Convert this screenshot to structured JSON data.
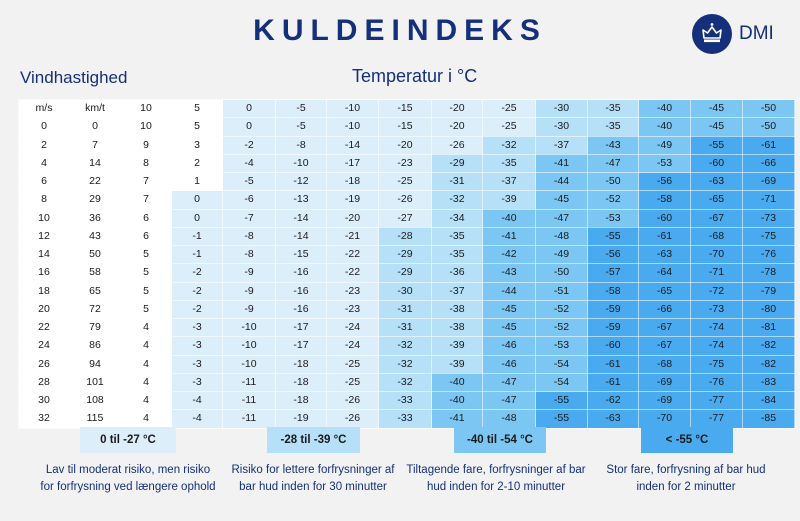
{
  "header": {
    "title": "KULDEINDEKS",
    "logo_text": "DMI",
    "row_header": "Vindhastighed",
    "col_header": "Temperatur i °C"
  },
  "colors": {
    "white": "#ffffff",
    "light": "#ddeefb",
    "mid": "#b5e0f8",
    "strong": "#7cc6f3",
    "severe": "#4aaaf0"
  },
  "chart_data": {
    "type": "table",
    "title": "KULDEINDEKS",
    "xlabel": "Temperatur i °C",
    "ylabel": "Vindhastighed",
    "header_row": [
      "m/s",
      "km/t",
      "10",
      "5",
      "0",
      "-5",
      "-10",
      "-15",
      "-20",
      "-25",
      "-30",
      "-35",
      "-40",
      "-45",
      "-50"
    ],
    "rows": [
      [
        "0",
        "0",
        "10",
        "5",
        "0",
        "-5",
        "-10",
        "-15",
        "-20",
        "-25",
        "-30",
        "-35",
        "-40",
        "-45",
        "-50"
      ],
      [
        "2",
        "7",
        "9",
        "3",
        "-2",
        "-8",
        "-14",
        "-20",
        "-26",
        "-32",
        "-37",
        "-43",
        "-49",
        "-55",
        "-61"
      ],
      [
        "4",
        "14",
        "8",
        "2",
        "-4",
        "-10",
        "-17",
        "-23",
        "-29",
        "-35",
        "-41",
        "-47",
        "-53",
        "-60",
        "-66"
      ],
      [
        "6",
        "22",
        "7",
        "1",
        "-5",
        "-12",
        "-18",
        "-25",
        "-31",
        "-37",
        "-44",
        "-50",
        "-56",
        "-63",
        "-69"
      ],
      [
        "8",
        "29",
        "7",
        "0",
        "-6",
        "-13",
        "-19",
        "-26",
        "-32",
        "-39",
        "-45",
        "-52",
        "-58",
        "-65",
        "-71"
      ],
      [
        "10",
        "36",
        "6",
        "0",
        "-7",
        "-14",
        "-20",
        "-27",
        "-34",
        "-40",
        "-47",
        "-53",
        "-60",
        "-67",
        "-73"
      ],
      [
        "12",
        "43",
        "6",
        "-1",
        "-8",
        "-14",
        "-21",
        "-28",
        "-35",
        "-41",
        "-48",
        "-55",
        "-61",
        "-68",
        "-75"
      ],
      [
        "14",
        "50",
        "5",
        "-1",
        "-8",
        "-15",
        "-22",
        "-29",
        "-35",
        "-42",
        "-49",
        "-56",
        "-63",
        "-70",
        "-76"
      ],
      [
        "16",
        "58",
        "5",
        "-2",
        "-9",
        "-16",
        "-22",
        "-29",
        "-36",
        "-43",
        "-50",
        "-57",
        "-64",
        "-71",
        "-78"
      ],
      [
        "18",
        "65",
        "5",
        "-2",
        "-9",
        "-16",
        "-23",
        "-30",
        "-37",
        "-44",
        "-51",
        "-58",
        "-65",
        "-72",
        "-79"
      ],
      [
        "20",
        "72",
        "5",
        "-2",
        "-9",
        "-16",
        "-23",
        "-31",
        "-38",
        "-45",
        "-52",
        "-59",
        "-66",
        "-73",
        "-80"
      ],
      [
        "22",
        "79",
        "4",
        "-3",
        "-10",
        "-17",
        "-24",
        "-31",
        "-38",
        "-45",
        "-52",
        "-59",
        "-67",
        "-74",
        "-81"
      ],
      [
        "24",
        "86",
        "4",
        "-3",
        "-10",
        "-17",
        "-24",
        "-32",
        "-39",
        "-46",
        "-53",
        "-60",
        "-67",
        "-74",
        "-82"
      ],
      [
        "26",
        "94",
        "4",
        "-3",
        "-10",
        "-18",
        "-25",
        "-32",
        "-39",
        "-46",
        "-54",
        "-61",
        "-68",
        "-75",
        "-82"
      ],
      [
        "28",
        "101",
        "4",
        "-3",
        "-11",
        "-18",
        "-25",
        "-32",
        "-40",
        "-47",
        "-54",
        "-61",
        "-69",
        "-76",
        "-83"
      ],
      [
        "30",
        "108",
        "4",
        "-4",
        "-11",
        "-18",
        "-26",
        "-33",
        "-40",
        "-47",
        "-55",
        "-62",
        "-69",
        "-77",
        "-84"
      ],
      [
        "32",
        "115",
        "4",
        "-4",
        "-11",
        "-19",
        "-26",
        "-33",
        "-41",
        "-48",
        "-55",
        "-63",
        "-70",
        "-77",
        "-85"
      ]
    ]
  },
  "legend": [
    {
      "label": "0 til -27 °C",
      "text": "Lav til moderat risiko, men risiko for forfrysning ved længere ophold"
    },
    {
      "label": "-28 til -39 °C",
      "text": "Risiko for lettere forfrysninger af bar hud inden for 30 minutter"
    },
    {
      "label": "-40 til -54 °C",
      "text": "Tiltagende fare, forfrysninger af bar hud inden for 2-10 minutter"
    },
    {
      "label": "< -55 °C",
      "text": "Stor fare, forfrysning af bar hud inden for 2 minutter"
    }
  ]
}
